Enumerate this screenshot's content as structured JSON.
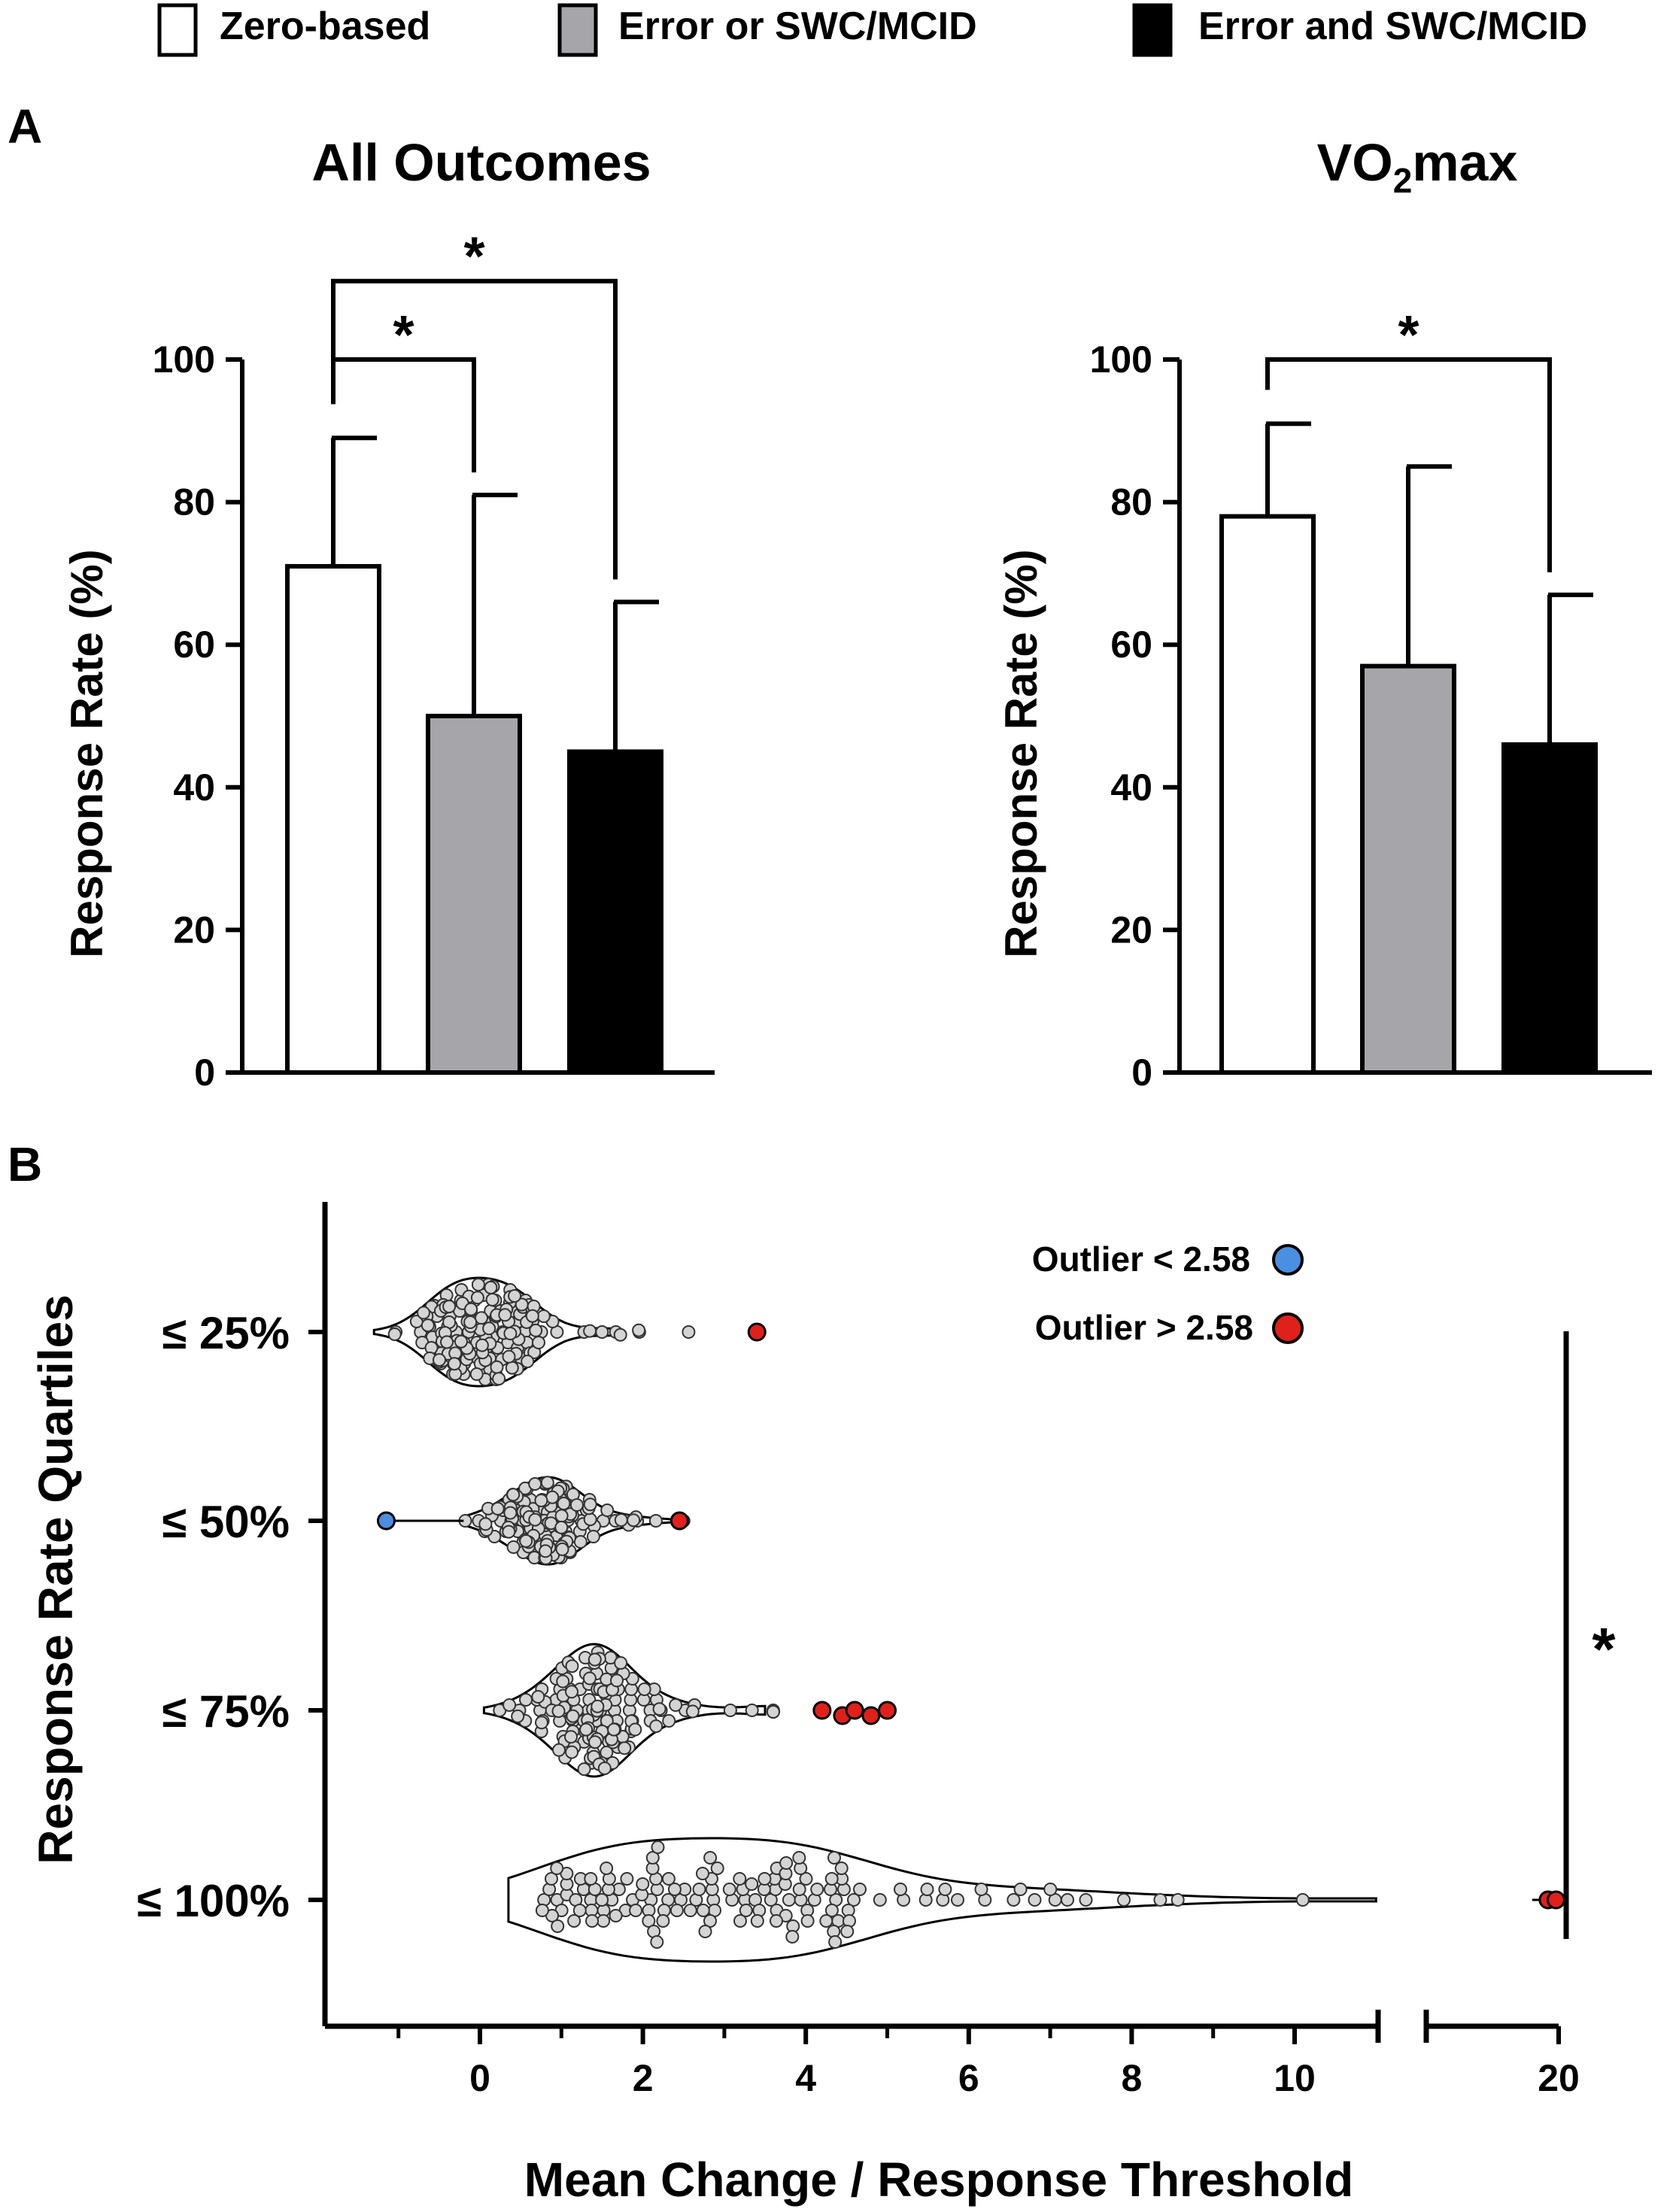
{
  "legend": {
    "items": [
      {
        "label": "Zero-based",
        "color": "#ffffff"
      },
      {
        "label": "Error or SWC/MCID",
        "color": "#a6a6aa"
      },
      {
        "label": "Error and SWC/MCID",
        "color": "#000000"
      }
    ]
  },
  "panels": {
    "a": {
      "label": "A"
    },
    "b": {
      "label": "B"
    }
  },
  "chart_data": [
    {
      "type": "bar",
      "id": "all-outcomes",
      "title": "All Outcomes",
      "ylabel": "Response  Rate (%)",
      "ylim": [
        0,
        100
      ],
      "yticks": [
        0,
        20,
        40,
        60,
        80,
        100
      ],
      "categories": [
        "Zero-based",
        "Error or SWC/MCID",
        "Error and SWC/MCID"
      ],
      "values": [
        71,
        50,
        45
      ],
      "errors": [
        18,
        31,
        21
      ],
      "colors": [
        "#ffffff",
        "#a6a6aa",
        "#000000"
      ],
      "significance": [
        {
          "from": 0,
          "to": 1,
          "label": "*",
          "level": 100
        },
        {
          "from": 0,
          "to": 2,
          "label": "*",
          "level": 111
        }
      ]
    },
    {
      "type": "bar",
      "id": "vo2max",
      "title": "VO",
      "title_sub": "2",
      "title_suffix": "max",
      "ylabel": "Response  Rate (%)",
      "ylim": [
        0,
        100
      ],
      "yticks": [
        0,
        20,
        40,
        60,
        80,
        100
      ],
      "categories": [
        "Zero-based",
        "Error or SWC/MCID",
        "Error and SWC/MCID"
      ],
      "values": [
        78,
        57,
        46
      ],
      "errors": [
        13,
        28,
        21
      ],
      "colors": [
        "#ffffff",
        "#a6a6aa",
        "#000000"
      ],
      "significance": [
        {
          "from": 0,
          "to": 2,
          "label": "*",
          "level": 100
        }
      ]
    },
    {
      "type": "scatter",
      "subtype": "violin-swarm",
      "id": "quartiles",
      "xlabel": "Mean Change / Response Threshold",
      "ylabel": "Response Rate Quartiles",
      "xticks": [
        "0",
        "2",
        "4",
        "6",
        "8",
        "10",
        "20"
      ],
      "xlim_main": [
        -2,
        11
      ],
      "xlim_broken": [
        15,
        20
      ],
      "categories": [
        "≤ 25%",
        "≤ 50%",
        "≤ 75%",
        "≤ 100%"
      ],
      "legend": [
        {
          "label": "Outlier < 2.58",
          "color": "#4a8fe0"
        },
        {
          "label": "Outlier > 2.58",
          "color": "#e0201b"
        }
      ],
      "significance_label": "*",
      "series": [
        {
          "name": "≤ 25%",
          "violin_range": [
            -1.3,
            1.7
          ],
          "median": 0.05,
          "spread": 0.55,
          "tail_to": 3.4,
          "n": 160,
          "outliers_high": [
            3.4
          ],
          "outliers_low": []
        },
        {
          "name": "≤ 50%",
          "violin_range": [
            -0.2,
            2.5
          ],
          "median": 0.8,
          "spread": 0.45,
          "tail_to": 2.5,
          "n": 150,
          "outliers_high": [
            2.45
          ],
          "outliers_low": [
            -1.15
          ]
        },
        {
          "name": "≤ 75%",
          "violin_range": [
            0.05,
            3.5
          ],
          "median": 1.35,
          "spread": 0.5,
          "tail_to": 3.6,
          "n": 140,
          "outliers_high": [
            4.2,
            4.45,
            4.6,
            4.8,
            5.0
          ],
          "outliers_low": []
        },
        {
          "name": "≤ 100%",
          "violin_range": [
            0.35,
            11
          ],
          "median": 2.7,
          "spread": 1.4,
          "tail_to": 10.1,
          "n": 140,
          "outliers_high": [
            19.6,
            19.9
          ],
          "outliers_low": []
        }
      ]
    }
  ]
}
